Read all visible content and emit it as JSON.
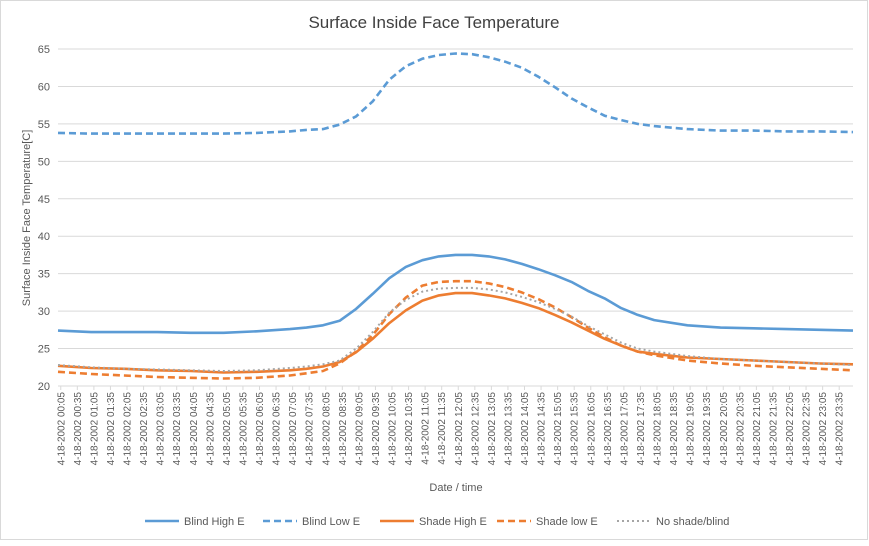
{
  "chart_data": {
    "type": "line",
    "title": "Surface Inside Face Temperature",
    "xlabel": "Date / time",
    "ylabel": "Surface Inside Face Temperature[C]",
    "ylim": [
      20,
      65
    ],
    "yticks": [
      20,
      25,
      30,
      35,
      40,
      45,
      50,
      55,
      60,
      65
    ],
    "grid": true,
    "legend_position": "bottom",
    "x_tick_labels": [
      "4-18-2002 00:05",
      "4-18-2002 00:35",
      "4-18-2002 01:05",
      "4-18-2002 01:35",
      "4-18-2002 02:05",
      "4-18-2002 02:35",
      "4-18-2002 03:05",
      "4-18-2002 03:35",
      "4-18-2002 04:05",
      "4-18-2002 04:35",
      "4-18-2002 05:05",
      "4-18-2002 05:35",
      "4-18-2002 06:05",
      "4-18-2002 06:35",
      "4-18-2002 07:05",
      "4-18-2002 07:35",
      "4-18-2002 08:05",
      "4-18-2002 08:35",
      "4-18-2002 09:05",
      "4-18-2002 09:35",
      "4-18-2002 10:05",
      "4-18-2002 10:35",
      "4-18-2002 11:05",
      "4-18-2002 11:35",
      "4-18-2002 12:05",
      "4-18-2002 12:35",
      "4-18-2002 13:05",
      "4-18-2002 13:35",
      "4-18-2002 14:05",
      "4-18-2002 14:35",
      "4-18-2002 15:05",
      "4-18-2002 15:35",
      "4-18-2002 16:05",
      "4-18-2002 16:35",
      "4-18-2002 17:05",
      "4-18-2002 17:35",
      "4-18-2002 18:05",
      "4-18-2002 18:35",
      "4-18-2002 19:05",
      "4-18-2002 19:35",
      "4-18-2002 20:05",
      "4-18-2002 20:35",
      "4-18-2002 21:05",
      "4-18-2002 21:35",
      "4-18-2002 22:05",
      "4-18-2002 22:35",
      "4-18-2002 23:05",
      "4-18-2002 23:35"
    ],
    "x_hours": [
      0,
      1,
      2,
      3,
      4,
      5,
      6,
      7,
      7.5,
      8,
      8.5,
      9,
      9.5,
      10,
      10.5,
      11,
      11.5,
      12,
      12.5,
      13,
      13.5,
      14,
      14.5,
      15,
      15.5,
      16,
      16.5,
      17,
      17.5,
      18,
      19,
      20,
      21,
      22,
      23,
      24
    ],
    "series": [
      {
        "name": "Blind High E",
        "color": "#5b9bd5",
        "dash": "solid",
        "values": [
          27.4,
          27.2,
          27.2,
          27.2,
          27.1,
          27.1,
          27.3,
          27.6,
          27.8,
          28.1,
          28.7,
          30.3,
          32.3,
          34.4,
          35.9,
          36.8,
          37.3,
          37.5,
          37.5,
          37.3,
          36.9,
          36.3,
          35.6,
          34.8,
          33.9,
          32.7,
          31.7,
          30.4,
          29.5,
          28.8,
          28.1,
          27.8,
          27.7,
          27.6,
          27.5,
          27.4
        ]
      },
      {
        "name": "Blind Low E",
        "color": "#5b9bd5",
        "dash": "dashed",
        "values": [
          53.8,
          53.7,
          53.7,
          53.7,
          53.7,
          53.7,
          53.8,
          54.0,
          54.2,
          54.3,
          54.9,
          56.0,
          58.0,
          60.9,
          62.7,
          63.7,
          64.2,
          64.4,
          64.3,
          63.9,
          63.3,
          62.5,
          61.3,
          59.9,
          58.4,
          57.2,
          56.1,
          55.5,
          55.0,
          54.7,
          54.3,
          54.1,
          54.1,
          54.0,
          54.0,
          53.9
        ]
      },
      {
        "name": "Shade High E",
        "color": "#ed7d31",
        "dash": "solid",
        "values": [
          22.7,
          22.4,
          22.3,
          22.1,
          22.0,
          21.8,
          21.9,
          22.1,
          22.3,
          22.6,
          23.2,
          24.5,
          26.3,
          28.4,
          30.1,
          31.4,
          32.1,
          32.4,
          32.4,
          32.1,
          31.7,
          31.1,
          30.4,
          29.5,
          28.5,
          27.4,
          26.3,
          25.4,
          24.6,
          24.3,
          23.8,
          23.6,
          23.4,
          23.2,
          23.0,
          22.9
        ]
      },
      {
        "name": "Shade low E",
        "color": "#ed7d31",
        "dash": "dashed",
        "values": [
          21.9,
          21.6,
          21.4,
          21.2,
          21.1,
          21.0,
          21.1,
          21.4,
          21.7,
          22.0,
          23.0,
          24.6,
          26.8,
          29.6,
          31.8,
          33.4,
          33.9,
          34.0,
          34.0,
          33.7,
          33.2,
          32.5,
          31.6,
          30.5,
          29.2,
          27.8,
          26.5,
          25.4,
          24.6,
          24.1,
          23.4,
          23.0,
          22.7,
          22.5,
          22.3,
          22.1
        ]
      },
      {
        "name": "No shade/blind",
        "color": "#a5a5a5",
        "dash": "dotted",
        "values": [
          22.8,
          22.5,
          22.3,
          22.2,
          22.1,
          22.0,
          22.1,
          22.4,
          22.6,
          22.9,
          23.4,
          25.0,
          27.2,
          29.8,
          31.5,
          32.6,
          33.0,
          33.1,
          33.1,
          32.9,
          32.5,
          31.9,
          31.2,
          30.3,
          29.3,
          28.0,
          26.9,
          25.8,
          25.0,
          24.6,
          24.0,
          23.6,
          23.4,
          23.2,
          23.0,
          22.8
        ]
      }
    ]
  }
}
